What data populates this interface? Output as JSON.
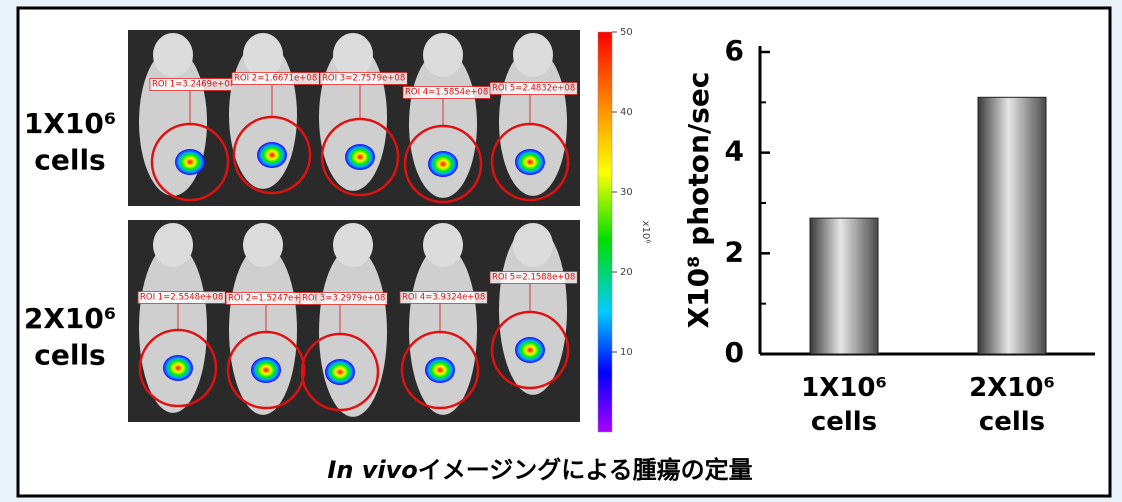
{
  "chart_data": {
    "type": "bar",
    "ylabel": "X10⁸ photon/sec",
    "categories": [
      "1X10⁶ cells",
      "2X10⁶ cells"
    ],
    "values": [
      2.7,
      5.1
    ],
    "ylim": [
      0,
      6
    ],
    "yticks": [
      0,
      2,
      4,
      6
    ],
    "minor_yticks": [
      1,
      3,
      5
    ]
  },
  "groups": [
    {
      "label": "1X10⁶ cells",
      "rois": [
        "ROI 1=3.2469e+08",
        "ROI 2=1.6671e+08",
        "ROI 3=2.7579e+08",
        "ROI 4=1.5854e+08",
        "ROI 5=2.4832e+08"
      ]
    },
    {
      "label": "2X10⁶ cells",
      "rois": [
        "ROI 1=2.5548e+08",
        "ROI 2=1.5247e+08",
        "ROI 3=3.2979e+08",
        "ROI 4=3.9324e+08",
        "ROI 5=2.1588e+08"
      ]
    }
  ],
  "colorbar": {
    "label": "x10⁶",
    "range": [
      0,
      50
    ],
    "ticks": [
      10,
      20,
      30,
      40,
      50
    ]
  },
  "caption": {
    "italic": "In vivo",
    "text": "イメージングによる腫瘍の定量"
  }
}
